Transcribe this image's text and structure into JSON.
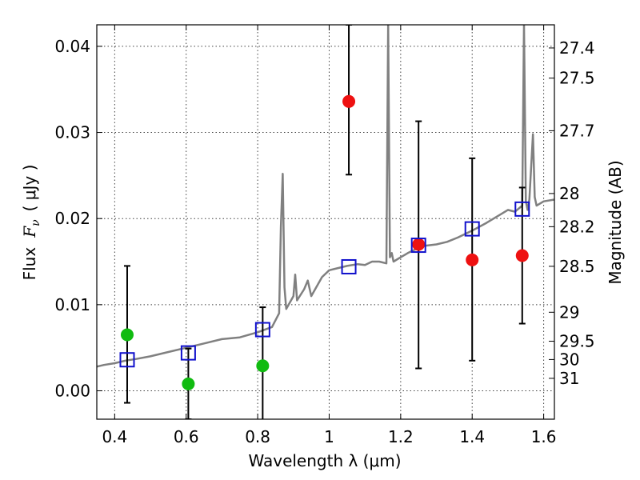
{
  "chart_data": {
    "type": "scatter",
    "xlabel": "Wavelength  λ (μm)",
    "ylabel": "Flux  F_ν  ( μJy )",
    "ylabel_parts": {
      "word": "Flux",
      "symbol": "F",
      "subscript": "ν",
      "unit": "( μJy )"
    },
    "y2label": "Magnitude (AB)",
    "xlim": [
      0.35,
      1.63
    ],
    "ylim": [
      -0.0033,
      0.0425
    ],
    "grid": true,
    "x_ticks": [
      {
        "value": 0.4,
        "label": "0.4"
      },
      {
        "value": 0.6,
        "label": "0.6"
      },
      {
        "value": 0.8,
        "label": "0.8"
      },
      {
        "value": 1.0,
        "label": "1"
      },
      {
        "value": 1.2,
        "label": "1.2"
      },
      {
        "value": 1.4,
        "label": "1.4"
      },
      {
        "value": 1.6,
        "label": "1.6"
      }
    ],
    "y_ticks": [
      {
        "value": 0.0,
        "label": "0.00"
      },
      {
        "value": 0.01,
        "label": "0.01"
      },
      {
        "value": 0.02,
        "label": "0.02"
      },
      {
        "value": 0.03,
        "label": "0.03"
      },
      {
        "value": 0.04,
        "label": "0.04"
      }
    ],
    "magnitude_ticks": [
      {
        "label": "27.4"
      },
      {
        "label": "27.5"
      },
      {
        "label": "27.7"
      },
      {
        "label": "28"
      },
      {
        "label": "28.2"
      },
      {
        "label": "28.5"
      },
      {
        "label": "29"
      },
      {
        "label": "29.5"
      },
      {
        "label": "30"
      },
      {
        "label": "31"
      }
    ],
    "colors": {
      "model": "#808080",
      "optical": "#11bb11",
      "nir": "#ee1111",
      "model_flux": "#1111cc",
      "errorbar": "#000000"
    },
    "series": [
      {
        "kind": "line",
        "x": [
          0.35,
          0.37,
          0.4,
          0.43,
          0.46,
          0.5,
          0.55,
          0.6,
          0.65,
          0.7,
          0.75,
          0.8,
          0.84,
          0.86,
          0.865,
          0.87,
          0.875,
          0.88,
          0.9,
          0.905,
          0.91,
          0.93,
          0.94,
          0.95,
          0.98,
          1.0,
          1.02,
          1.05,
          1.08,
          1.1,
          1.12,
          1.14,
          1.16,
          1.165,
          1.17,
          1.175,
          1.18,
          1.2,
          1.22,
          1.26,
          1.3,
          1.33,
          1.36,
          1.4,
          1.44,
          1.48,
          1.5,
          1.52,
          1.54,
          1.545,
          1.55,
          1.555,
          1.56,
          1.57,
          1.575,
          1.58,
          1.6,
          1.63
        ],
        "y": [
          0.0028,
          0.003,
          0.0032,
          0.0035,
          0.0037,
          0.004,
          0.0045,
          0.005,
          0.0055,
          0.006,
          0.0062,
          0.0068,
          0.0074,
          0.009,
          0.019,
          0.0252,
          0.012,
          0.0095,
          0.011,
          0.0135,
          0.0105,
          0.0118,
          0.0128,
          0.011,
          0.0132,
          0.014,
          0.0142,
          0.0145,
          0.0147,
          0.0146,
          0.015,
          0.015,
          0.0148,
          0.0425,
          0.0155,
          0.016,
          0.015,
          0.0155,
          0.016,
          0.0168,
          0.017,
          0.0173,
          0.0178,
          0.0186,
          0.0195,
          0.0205,
          0.021,
          0.0208,
          0.0215,
          0.0425,
          0.022,
          0.021,
          0.0222,
          0.0298,
          0.0225,
          0.0215,
          0.022,
          0.0222
        ]
      },
      {
        "kind": "points_with_errors",
        "name": "optical",
        "x": [
          0.435,
          0.606,
          0.814
        ],
        "y": [
          0.0065,
          0.0008,
          0.0029
        ],
        "err_low": [
          0.0079,
          0.0041,
          0.0065
        ],
        "err_high": [
          0.008,
          0.0041,
          0.0068
        ]
      },
      {
        "kind": "points_with_errors",
        "name": "nir",
        "x": [
          1.055,
          1.25,
          1.4,
          1.54
        ],
        "y": [
          0.0336,
          0.017,
          0.0152,
          0.0157
        ],
        "err_low": [
          0.0085,
          0.0144,
          0.0117,
          0.0079
        ],
        "err_high": [
          0.0089,
          0.0143,
          0.0118,
          0.0079
        ]
      },
      {
        "kind": "squares",
        "name": "model_flux",
        "x": [
          0.435,
          0.606,
          0.814,
          1.055,
          1.25,
          1.4,
          1.54
        ],
        "y": [
          0.0036,
          0.0044,
          0.0071,
          0.0144,
          0.0169,
          0.0188,
          0.0211
        ]
      }
    ]
  }
}
